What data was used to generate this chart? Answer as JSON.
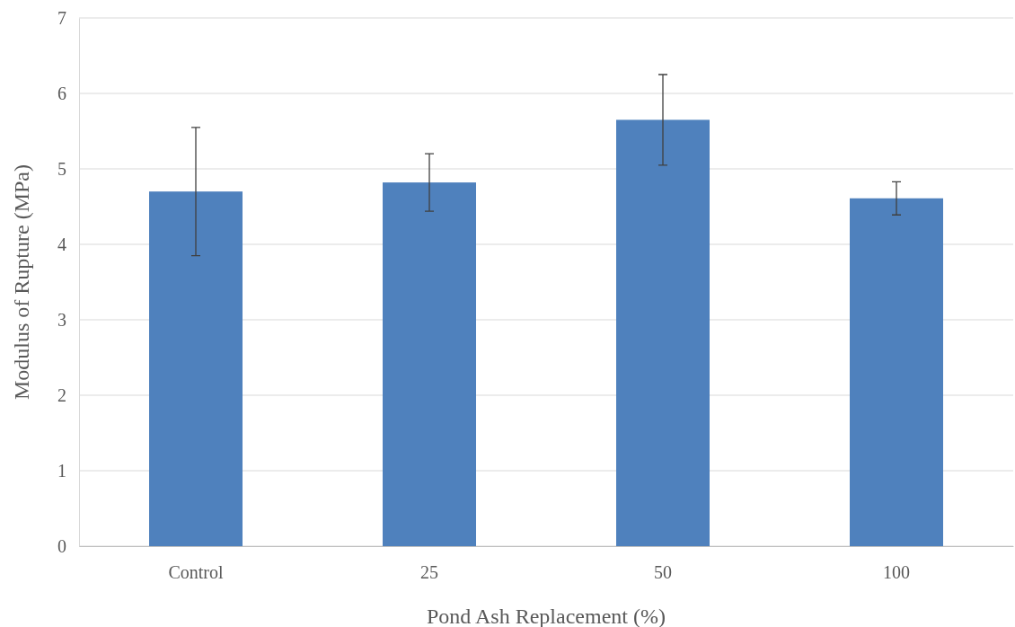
{
  "chart_data": {
    "type": "bar",
    "xlabel": "Pond Ash Replacement (%)",
    "ylabel": "Modulus of Rupture (MPa)",
    "categories": [
      "Control",
      "25",
      "50",
      "100"
    ],
    "values": [
      4.7,
      4.82,
      5.65,
      4.61
    ],
    "errors": [
      0.85,
      0.38,
      0.6,
      0.22
    ],
    "color": "#4f81bd",
    "ylim": [
      0,
      7
    ],
    "yticks": [
      0,
      1,
      2,
      3,
      4,
      5,
      6,
      7
    ],
    "grid": "y"
  }
}
